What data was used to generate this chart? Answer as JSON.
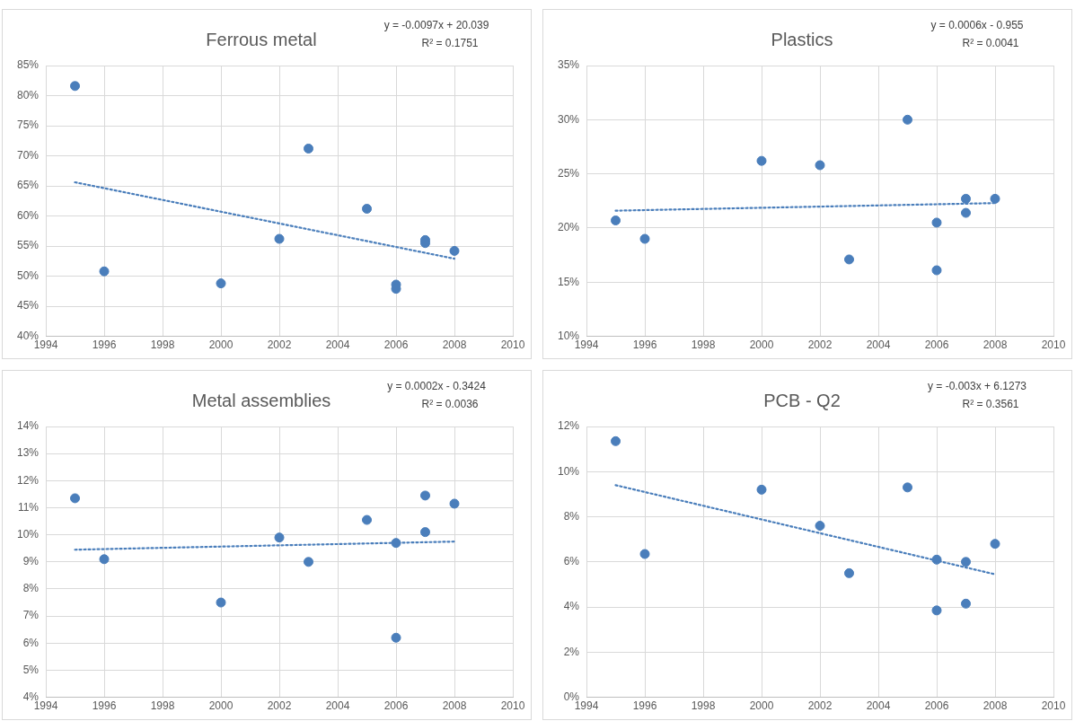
{
  "chart_data": [
    {
      "type": "scatter",
      "title": "Ferrous metal",
      "annotations": [
        "y = -0.0097x + 20.039",
        "R² = 0.1751"
      ],
      "xlim": [
        1994,
        2010
      ],
      "xticks": [
        1994,
        1996,
        1998,
        2000,
        2002,
        2004,
        2006,
        2008,
        2010
      ],
      "ylim": [
        40,
        85
      ],
      "yticks": [
        {
          "value": 40,
          "label": "40%"
        },
        {
          "value": 45,
          "label": "45%"
        },
        {
          "value": 50,
          "label": "50%"
        },
        {
          "value": 55,
          "label": "55%"
        },
        {
          "value": 60,
          "label": "60%"
        },
        {
          "value": 65,
          "label": "65%"
        },
        {
          "value": 70,
          "label": "70%"
        },
        {
          "value": 75,
          "label": "75%"
        },
        {
          "value": 80,
          "label": "80%"
        },
        {
          "value": 85,
          "label": "85%"
        }
      ],
      "grid": true,
      "legend": false,
      "series": [
        {
          "marker": "circle",
          "color": "#4a7ebb",
          "x": [
            1995,
            1996,
            2000,
            2002,
            2003,
            2005,
            2006,
            2006,
            2007,
            2007,
            2008
          ],
          "values": [
            81.6,
            50.8,
            48.8,
            56.2,
            71.2,
            61.2,
            48.6,
            47.9,
            56.0,
            55.5,
            54.2
          ]
        },
        {
          "type": "line",
          "color": "#4a7ebb",
          "line_style": "dotted",
          "x": [
            1995,
            2008
          ],
          "values": [
            65.6,
            52.9
          ]
        }
      ]
    },
    {
      "type": "scatter",
      "title": "Plastics",
      "annotations": [
        "y = 0.0006x - 0.955",
        "R² = 0.0041"
      ],
      "xlim": [
        1994,
        2010
      ],
      "xticks": [
        1994,
        1996,
        1998,
        2000,
        2002,
        2004,
        2006,
        2008,
        2010
      ],
      "ylim": [
        10,
        35
      ],
      "yticks": [
        {
          "value": 10,
          "label": "10%"
        },
        {
          "value": 15,
          "label": "15%"
        },
        {
          "value": 20,
          "label": "20%"
        },
        {
          "value": 25,
          "label": "25%"
        },
        {
          "value": 30,
          "label": "30%"
        },
        {
          "value": 35,
          "label": "35%"
        }
      ],
      "grid": true,
      "legend": false,
      "series": [
        {
          "marker": "circle",
          "color": "#4a7ebb",
          "x": [
            1995,
            1996,
            2000,
            2002,
            2003,
            2005,
            2006,
            2006,
            2007,
            2007,
            2008
          ],
          "values": [
            20.7,
            19.0,
            26.2,
            25.8,
            17.1,
            30.0,
            20.5,
            16.1,
            22.7,
            21.4,
            22.7
          ]
        },
        {
          "type": "line",
          "color": "#4a7ebb",
          "line_style": "dotted",
          "x": [
            1995,
            2008
          ],
          "values": [
            21.6,
            22.3
          ]
        }
      ]
    },
    {
      "type": "scatter",
      "title": "Metal assemblies",
      "annotations": [
        "y = 0.0002x - 0.3424",
        "R² = 0.0036"
      ],
      "xlim": [
        1994,
        2010
      ],
      "xticks": [
        1994,
        1996,
        1998,
        2000,
        2002,
        2004,
        2006,
        2008,
        2010
      ],
      "ylim": [
        4,
        14
      ],
      "yticks": [
        {
          "value": 4,
          "label": "4%"
        },
        {
          "value": 5,
          "label": "5%"
        },
        {
          "value": 6,
          "label": "6%"
        },
        {
          "value": 7,
          "label": "7%"
        },
        {
          "value": 8,
          "label": "8%"
        },
        {
          "value": 9,
          "label": "9%"
        },
        {
          "value": 10,
          "label": "10%"
        },
        {
          "value": 11,
          "label": "11%"
        },
        {
          "value": 12,
          "label": "12%"
        },
        {
          "value": 13,
          "label": "13%"
        },
        {
          "value": 14,
          "label": "14%"
        }
      ],
      "grid": true,
      "legend": false,
      "series": [
        {
          "marker": "circle",
          "color": "#4a7ebb",
          "x": [
            1995,
            1996,
            2000,
            2002,
            2003,
            2005,
            2006,
            2006,
            2007,
            2007,
            2008
          ],
          "values": [
            11.35,
            9.1,
            7.5,
            9.9,
            9.0,
            10.55,
            9.7,
            6.2,
            11.45,
            10.1,
            11.15
          ]
        },
        {
          "type": "line",
          "color": "#4a7ebb",
          "line_style": "dotted",
          "x": [
            1995,
            2008
          ],
          "values": [
            9.45,
            9.75
          ]
        }
      ]
    },
    {
      "type": "scatter",
      "title": "PCB - Q2",
      "annotations": [
        "y = -0.003x + 6.1273",
        "R² = 0.3561"
      ],
      "xlim": [
        1994,
        2010
      ],
      "xticks": [
        1994,
        1996,
        1998,
        2000,
        2002,
        2004,
        2006,
        2008,
        2010
      ],
      "ylim": [
        0,
        12
      ],
      "yticks": [
        {
          "value": 0,
          "label": "0%"
        },
        {
          "value": 2,
          "label": "2%"
        },
        {
          "value": 4,
          "label": "4%"
        },
        {
          "value": 6,
          "label": "6%"
        },
        {
          "value": 8,
          "label": "8%"
        },
        {
          "value": 10,
          "label": "10%"
        },
        {
          "value": 12,
          "label": "12%"
        }
      ],
      "grid": true,
      "legend": false,
      "series": [
        {
          "marker": "circle",
          "color": "#4a7ebb",
          "x": [
            1995,
            1996,
            2000,
            2002,
            2003,
            2005,
            2006,
            2006,
            2007,
            2007,
            2008
          ],
          "values": [
            11.35,
            6.35,
            9.2,
            7.6,
            5.5,
            9.3,
            6.1,
            3.85,
            6.0,
            4.15,
            6.8
          ]
        },
        {
          "type": "line",
          "color": "#4a7ebb",
          "line_style": "dotted",
          "x": [
            1995,
            2008
          ],
          "values": [
            9.4,
            5.45
          ]
        }
      ]
    }
  ]
}
